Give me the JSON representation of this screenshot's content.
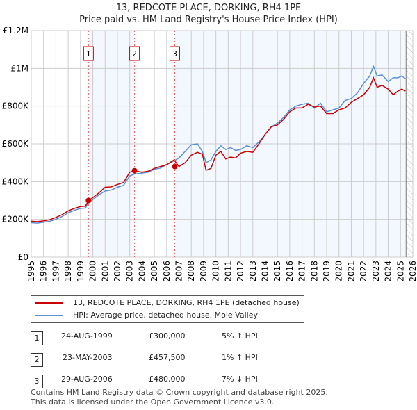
{
  "chart_data": {
    "type": "line",
    "title": "13, REDCOTE PLACE, DORKING, RH4 1PE",
    "subtitle": "Price paid vs. HM Land Registry's House Price Index (HPI)",
    "xlim": [
      1995,
      2026
    ],
    "ylim": [
      0,
      1200000
    ],
    "y_ticks": [
      {
        "v": 0,
        "label": "£0"
      },
      {
        "v": 200000,
        "label": "£200K"
      },
      {
        "v": 400000,
        "label": "£400K"
      },
      {
        "v": 600000,
        "label": "£600K"
      },
      {
        "v": 800000,
        "label": "£800K"
      },
      {
        "v": 1000000,
        "label": "£1M"
      },
      {
        "v": 1200000,
        "label": "£1.2M"
      }
    ],
    "x_ticks": [
      "1995",
      "1996",
      "1997",
      "1998",
      "1999",
      "2000",
      "2001",
      "2002",
      "2003",
      "2004",
      "2005",
      "2006",
      "2007",
      "2008",
      "2009",
      "2010",
      "2011",
      "2012",
      "2013",
      "2014",
      "2015",
      "2016",
      "2017",
      "2018",
      "2019",
      "2020",
      "2021",
      "2022",
      "2023",
      "2024",
      "2025",
      "2026"
    ],
    "x": [
      1995,
      1995.5,
      1996,
      1996.5,
      1997,
      1997.5,
      1998,
      1998.5,
      1999,
      1999.4,
      1999.65,
      2000,
      2000.5,
      2001,
      2001.5,
      2002,
      2002.5,
      2003,
      2003.4,
      2004,
      2004.5,
      2005,
      2005.5,
      2006,
      2006.6,
      2007,
      2007.5,
      2008,
      2008.5,
      2008.9,
      2009.2,
      2009.6,
      2010,
      2010.4,
      2010.8,
      2011.2,
      2011.6,
      2012,
      2012.5,
      2013,
      2013.5,
      2014,
      2014.5,
      2015,
      2015.5,
      2016,
      2016.5,
      2017,
      2017.5,
      2018,
      2018.5,
      2019,
      2019.5,
      2020,
      2020.5,
      2021,
      2021.5,
      2022,
      2022.5,
      2022.8,
      2023.1,
      2023.5,
      2024,
      2024.4,
      2024.8,
      2025.1,
      2025.4
    ],
    "series": [
      {
        "name": "13, REDCOTE PLACE, DORKING, RH4 1PE (detached house)",
        "color": "#cc0000",
        "values": [
          190,
          188,
          192,
          198,
          210,
          225,
          245,
          258,
          268,
          270,
          300,
          315,
          340,
          370,
          372,
          385,
          395,
          450,
          457,
          450,
          455,
          470,
          480,
          490,
          515,
          480,
          500,
          540,
          555,
          545,
          460,
          470,
          540,
          560,
          520,
          530,
          525,
          550,
          560,
          555,
          600,
          650,
          690,
          700,
          730,
          770,
          790,
          790,
          810,
          795,
          800,
          760,
          760,
          780,
          790,
          820,
          840,
          860,
          900,
          950,
          900,
          910,
          890,
          860,
          880,
          890,
          880
        ]
      },
      {
        "name": "HPI: Average price, detached house, Mole Valley",
        "color": "#5b8fd6",
        "values": [
          182,
          180,
          185,
          190,
          200,
          215,
          235,
          248,
          258,
          260,
          290,
          305,
          330,
          350,
          355,
          370,
          380,
          430,
          440,
          445,
          450,
          465,
          472,
          490,
          510,
          525,
          560,
          595,
          600,
          560,
          500,
          515,
          560,
          590,
          570,
          580,
          565,
          570,
          590,
          580,
          610,
          650,
          690,
          710,
          740,
          780,
          800,
          810,
          815,
          790,
          815,
          770,
          780,
          790,
          830,
          840,
          870,
          920,
          960,
          1010,
          960,
          965,
          930,
          950,
          950,
          960,
          945
        ]
      }
    ],
    "sales": [
      {
        "num": "1",
        "date": "24-AUG-1999",
        "x": 1999.65,
        "price": "£300,000",
        "value": 300,
        "hpi": "5% ↑ HPI"
      },
      {
        "num": "2",
        "date": "23-MAY-2003",
        "x": 2003.39,
        "price": "£457,500",
        "value": 457.5,
        "hpi": "1% ↑ HPI"
      },
      {
        "num": "3",
        "date": "29-AUG-2006",
        "x": 2006.66,
        "price": "£480,000",
        "value": 480,
        "hpi": "7% ↓ HPI"
      }
    ],
    "forecast_start": 2025.45
  },
  "legend": {
    "red": "13, REDCOTE PLACE, DORKING, RH4 1PE (detached house)",
    "blue": "HPI: Average price, detached house, Mole Valley"
  },
  "footer": {
    "line1": "Contains HM Land Registry data © Crown copyright and database right 2025.",
    "line2": "This data is licensed under the Open Government Licence v3.0."
  }
}
